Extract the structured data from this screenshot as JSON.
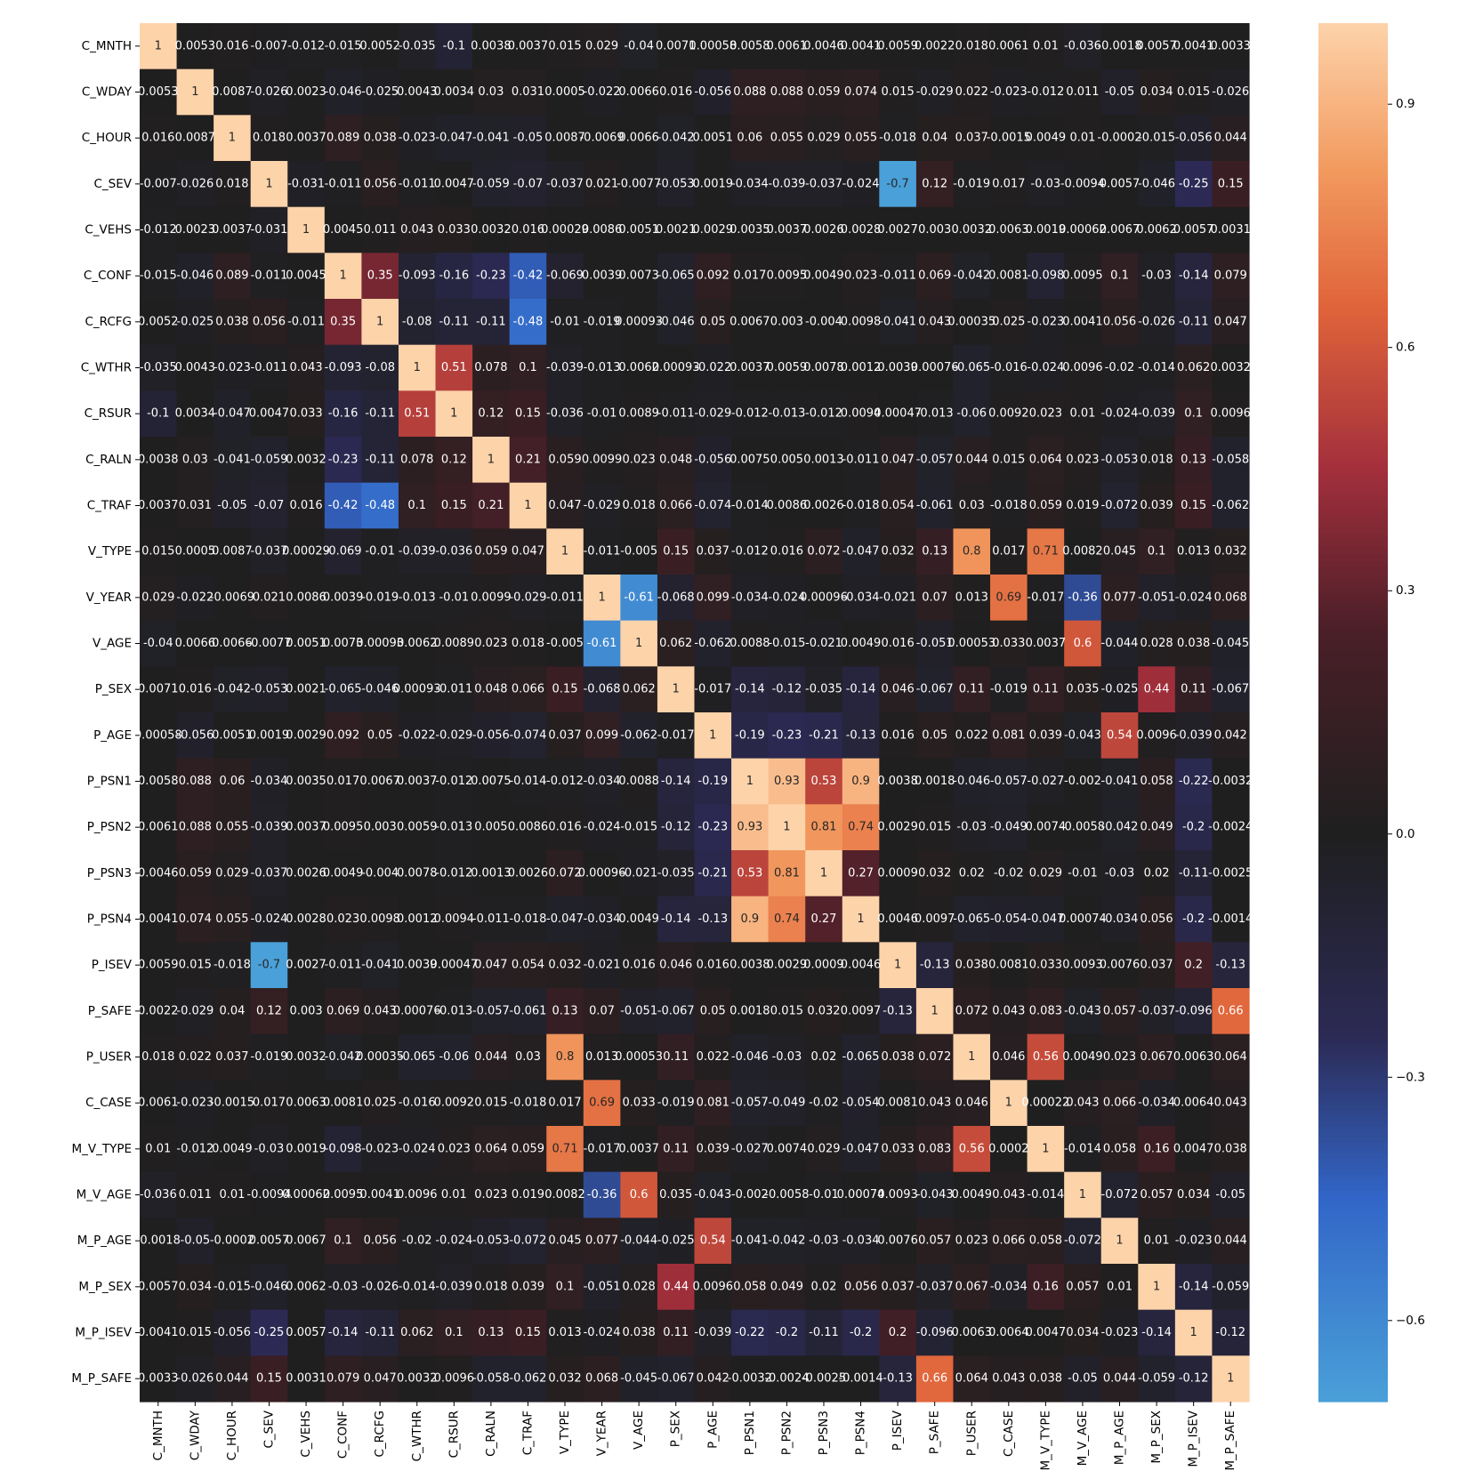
{
  "chart_data": {
    "type": "heatmap",
    "title": "",
    "xlabel": "",
    "ylabel": "",
    "labels": [
      "C_MNTH",
      "C_WDAY",
      "C_HOUR",
      "C_SEV",
      "C_VEHS",
      "C_CONF",
      "C_RCFG",
      "C_WTHR",
      "C_RSUR",
      "C_RALN",
      "C_TRAF",
      "V_TYPE",
      "V_YEAR",
      "V_AGE",
      "P_SEX",
      "P_AGE",
      "P_PSN1",
      "P_PSN2",
      "P_PSN3",
      "P_PSN4",
      "P_ISEV",
      "P_SAFE",
      "P_USER",
      "C_CASE",
      "M_V_TYPE",
      "M_V_AGE",
      "M_P_AGE",
      "M_P_SEX",
      "M_P_ISEV",
      "M_P_SAFE"
    ],
    "value_labels": [
      [
        "1",
        "0.0053",
        "0.016",
        "-0.007",
        "-0.012",
        "-0.015",
        "0.0052",
        "-0.035",
        "-0.1",
        "0.0038",
        "0.0037",
        "0.015",
        "0.029",
        "-0.04",
        "0.0071",
        "0.00058",
        "0.0058",
        "0.0061",
        "0.0046",
        "0.0041",
        "0.0059",
        "0.0022",
        "0.018",
        "0.0061",
        "0.01",
        "-0.036",
        "-0.0018",
        "0.0057",
        "0.0041",
        "0.0033"
      ],
      [
        "0.0053",
        "1",
        "0.0087",
        "-0.026",
        "0.0023",
        "-0.046",
        "-0.025",
        "0.0043",
        "0.0034",
        "0.03",
        "0.031",
        "0.0005",
        "-0.022",
        "0.0066",
        "0.016",
        "-0.056",
        "0.088",
        "0.088",
        "0.059",
        "0.074",
        "0.015",
        "-0.029",
        "0.022",
        "-0.023",
        "-0.012",
        "0.011",
        "-0.05",
        "0.034",
        "0.015",
        "-0.026"
      ],
      [
        "0.016",
        "0.0087",
        "1",
        "0.018",
        "0.0037",
        "0.089",
        "0.038",
        "-0.023",
        "-0.047",
        "-0.041",
        "-0.05",
        "0.0087",
        "-0.0069",
        "0.0066",
        "-0.042",
        "0.0051",
        "0.06",
        "0.055",
        "0.029",
        "0.055",
        "-0.018",
        "0.04",
        "0.037",
        "-0.0015",
        "0.0049",
        "0.01",
        "-0.0002",
        "-0.015",
        "-0.056",
        "0.044"
      ],
      [
        "-0.007",
        "-0.026",
        "0.018",
        "1",
        "-0.031",
        "-0.011",
        "0.056",
        "-0.011",
        "0.0047",
        "-0.059",
        "-0.07",
        "-0.037",
        "0.021",
        "-0.0077",
        "-0.053",
        "0.0019",
        "-0.034",
        "-0.039",
        "-0.037",
        "-0.024",
        "-0.7",
        "0.12",
        "-0.019",
        "0.017",
        "-0.03",
        "-0.0094",
        "0.0057",
        "-0.046",
        "-0.25",
        "0.15"
      ],
      [
        "-0.012",
        "0.0023",
        "0.0037",
        "-0.031",
        "1",
        "0.0045",
        "0.011",
        "0.043",
        "0.033",
        "0.0032",
        "0.016",
        "0.00029",
        "0.0086",
        "0.0051",
        "0.0021",
        "0.0029",
        "0.0035",
        "0.0037",
        "0.0026",
        "0.0028",
        "0.0027",
        "0.003",
        "0.0032",
        "0.0063",
        "0.0019",
        "0.00062",
        "0.0067",
        "0.0062",
        "0.0057",
        "0.0031"
      ],
      [
        "-0.015",
        "-0.046",
        "0.089",
        "-0.011",
        "0.0045",
        "1",
        "0.35",
        "-0.093",
        "-0.16",
        "-0.23",
        "-0.42",
        "-0.069",
        "0.0039",
        "0.0073",
        "-0.065",
        "0.092",
        "0.017",
        "0.0095",
        "0.0049",
        "0.023",
        "-0.011",
        "0.069",
        "-0.042",
        "0.0081",
        "-0.098",
        "0.0095",
        "0.1",
        "-0.03",
        "-0.14",
        "0.079"
      ],
      [
        "0.0052",
        "-0.025",
        "0.038",
        "0.056",
        "-0.011",
        "0.35",
        "1",
        "-0.08",
        "-0.11",
        "-0.11",
        "-0.48",
        "-0.01",
        "-0.019",
        "0.00093",
        "-0.046",
        "0.05",
        "0.0067",
        "0.003",
        "-0.004",
        "0.0098",
        "-0.041",
        "0.043",
        "0.00035",
        "0.025",
        "-0.023",
        "0.0041",
        "0.056",
        "-0.026",
        "-0.11",
        "0.047"
      ],
      [
        "-0.035",
        "0.0043",
        "-0.023",
        "-0.011",
        "0.043",
        "-0.093",
        "-0.08",
        "1",
        "0.51",
        "0.078",
        "0.1",
        "-0.039",
        "-0.013",
        "0.0062",
        "0.00093",
        "-0.022",
        "0.0037",
        "0.0059",
        "0.0078",
        "0.0012",
        "0.0039",
        "0.00076",
        "-0.065",
        "-0.016",
        "-0.024",
        "0.0096",
        "-0.02",
        "-0.014",
        "0.062",
        "0.0032"
      ],
      [
        "-0.1",
        "0.0034",
        "-0.047",
        "0.0047",
        "0.033",
        "-0.16",
        "-0.11",
        "0.51",
        "1",
        "0.12",
        "0.15",
        "-0.036",
        "-0.01",
        "0.0089",
        "-0.011",
        "-0.029",
        "-0.012",
        "-0.013",
        "-0.012",
        "0.0094",
        "0.00047",
        "-0.013",
        "-0.06",
        "0.0092",
        "0.023",
        "0.01",
        "-0.024",
        "-0.039",
        "0.1",
        "0.0096"
      ],
      [
        "0.0038",
        "0.03",
        "-0.041",
        "-0.059",
        "0.0032",
        "-0.23",
        "-0.11",
        "0.078",
        "0.12",
        "1",
        "0.21",
        "0.059",
        "0.0099",
        "0.023",
        "0.048",
        "-0.056",
        "0.0075",
        "0.005",
        "0.0013",
        "-0.011",
        "0.047",
        "-0.057",
        "0.044",
        "0.015",
        "0.064",
        "0.023",
        "-0.053",
        "0.018",
        "0.13",
        "-0.058"
      ],
      [
        "0.0037",
        "0.031",
        "-0.05",
        "-0.07",
        "0.016",
        "-0.42",
        "-0.48",
        "0.1",
        "0.15",
        "0.21",
        "1",
        "0.047",
        "-0.029",
        "0.018",
        "0.066",
        "-0.074",
        "-0.014",
        "0.0086",
        "0.0026",
        "-0.018",
        "0.054",
        "-0.061",
        "0.03",
        "-0.018",
        "0.059",
        "0.019",
        "-0.072",
        "0.039",
        "0.15",
        "-0.062"
      ],
      [
        "0.015",
        "0.0005",
        "0.0087",
        "-0.037",
        "0.00029",
        "-0.069",
        "-0.01",
        "-0.039",
        "-0.036",
        "0.059",
        "0.047",
        "1",
        "-0.011",
        "-0.005",
        "0.15",
        "0.037",
        "-0.012",
        "0.016",
        "0.072",
        "-0.047",
        "0.032",
        "0.13",
        "0.8",
        "0.017",
        "0.71",
        "0.0082",
        "0.045",
        "0.1",
        "0.013",
        "0.032"
      ],
      [
        "0.029",
        "-0.022",
        "-0.0069",
        "0.021",
        "0.0086",
        "0.0039",
        "-0.019",
        "-0.013",
        "-0.01",
        "0.0099",
        "-0.029",
        "-0.011",
        "1",
        "-0.61",
        "-0.068",
        "0.099",
        "-0.034",
        "-0.024",
        "0.00096",
        "-0.034",
        "-0.021",
        "0.07",
        "0.013",
        "0.69",
        "-0.017",
        "-0.36",
        "0.077",
        "-0.051",
        "-0.024",
        "0.068"
      ],
      [
        "-0.04",
        "0.0066",
        "0.0066",
        "-0.0077",
        "0.0051",
        "0.0073",
        "0.00093",
        "0.0062",
        "0.0089",
        "0.023",
        "0.018",
        "-0.005",
        "-0.61",
        "1",
        "0.062",
        "-0.062",
        "0.0088",
        "-0.015",
        "-0.021",
        "0.0049",
        "0.016",
        "-0.051",
        "0.00053",
        "0.033",
        "0.0037",
        "0.6",
        "-0.044",
        "0.028",
        "0.038",
        "-0.045"
      ],
      [
        "0.0071",
        "0.016",
        "-0.042",
        "-0.053",
        "0.0021",
        "-0.065",
        "-0.046",
        "0.00093",
        "-0.011",
        "0.048",
        "0.066",
        "0.15",
        "-0.068",
        "0.062",
        "1",
        "-0.017",
        "-0.14",
        "-0.12",
        "-0.035",
        "-0.14",
        "0.046",
        "-0.067",
        "0.11",
        "-0.019",
        "0.11",
        "0.035",
        "-0.025",
        "0.44",
        "0.11",
        "-0.067"
      ],
      [
        "0.00058",
        "-0.056",
        "0.0051",
        "0.0019",
        "0.0029",
        "0.092",
        "0.05",
        "-0.022",
        "-0.029",
        "-0.056",
        "-0.074",
        "0.037",
        "0.099",
        "-0.062",
        "-0.017",
        "1",
        "-0.19",
        "-0.23",
        "-0.21",
        "-0.13",
        "0.016",
        "0.05",
        "0.022",
        "0.081",
        "0.039",
        "-0.043",
        "0.54",
        "0.0096",
        "-0.039",
        "0.042"
      ],
      [
        "0.0058",
        "0.088",
        "0.06",
        "-0.034",
        "0.0035",
        "0.017",
        "0.0067",
        "0.0037",
        "-0.012",
        "0.0075",
        "-0.014",
        "-0.012",
        "-0.034",
        "0.0088",
        "-0.14",
        "-0.19",
        "1",
        "0.93",
        "0.53",
        "0.9",
        "0.0038",
        "0.0018",
        "-0.046",
        "-0.057",
        "-0.027",
        "-0.002",
        "-0.041",
        "0.058",
        "-0.22",
        "-0.0032"
      ],
      [
        "0.0061",
        "0.088",
        "0.055",
        "-0.039",
        "0.0037",
        "0.0095",
        "0.003",
        "0.0059",
        "-0.013",
        "0.005",
        "0.0086",
        "0.016",
        "-0.024",
        "-0.015",
        "-0.12",
        "-0.23",
        "0.93",
        "1",
        "0.81",
        "0.74",
        "0.0029",
        "0.015",
        "-0.03",
        "-0.049",
        "0.0074",
        "-0.0058",
        "-0.042",
        "0.049",
        "-0.2",
        "-0.0024"
      ],
      [
        "0.0046",
        "0.059",
        "0.029",
        "-0.037",
        "0.0026",
        "0.0049",
        "-0.004",
        "0.0078",
        "-0.012",
        "0.0013",
        "0.0026",
        "0.072",
        "0.00096",
        "-0.021",
        "-0.035",
        "-0.21",
        "0.53",
        "0.81",
        "1",
        "0.27",
        "0.0009",
        "0.032",
        "0.02",
        "-0.02",
        "0.029",
        "-0.01",
        "-0.03",
        "0.02",
        "-0.11",
        "-0.0025"
      ],
      [
        "0.0041",
        "0.074",
        "0.055",
        "-0.024",
        "0.0028",
        "0.023",
        "0.0098",
        "0.0012",
        "0.0094",
        "-0.011",
        "-0.018",
        "-0.047",
        "-0.034",
        "0.0049",
        "-0.14",
        "-0.13",
        "0.9",
        "0.74",
        "0.27",
        "1",
        "0.0046",
        "0.0097",
        "-0.065",
        "-0.054",
        "-0.047",
        "0.00074",
        "-0.034",
        "0.056",
        "-0.2",
        "-0.0014"
      ],
      [
        "0.0059",
        "0.015",
        "-0.018",
        "-0.7",
        "0.0027",
        "-0.011",
        "-0.041",
        "0.0039",
        "0.00047",
        "0.047",
        "0.054",
        "0.032",
        "-0.021",
        "0.016",
        "0.046",
        "0.016",
        "0.0038",
        "0.0029",
        "0.0009",
        "0.0046",
        "1",
        "-0.13",
        "0.038",
        "0.0081",
        "0.033",
        "0.0093",
        "0.0076",
        "0.037",
        "0.2",
        "-0.13"
      ],
      [
        "0.0022",
        "-0.029",
        "0.04",
        "0.12",
        "0.003",
        "0.069",
        "0.043",
        "0.00076",
        "-0.013",
        "-0.057",
        "-0.061",
        "0.13",
        "0.07",
        "-0.051",
        "-0.067",
        "0.05",
        "0.0018",
        "0.015",
        "0.032",
        "0.0097",
        "-0.13",
        "1",
        "0.072",
        "0.043",
        "0.083",
        "-0.043",
        "0.057",
        "-0.037",
        "-0.096",
        "0.66"
      ],
      [
        "0.018",
        "0.022",
        "0.037",
        "-0.019",
        "0.0032",
        "-0.042",
        "0.00035",
        "-0.065",
        "-0.06",
        "0.044",
        "0.03",
        "0.8",
        "0.013",
        "0.00053",
        "0.11",
        "0.022",
        "-0.046",
        "-0.03",
        "0.02",
        "-0.065",
        "0.038",
        "0.072",
        "1",
        "0.046",
        "0.56",
        "0.0049",
        "0.023",
        "0.067",
        "0.0063",
        "0.064"
      ],
      [
        "0.0061",
        "-0.023",
        "-0.0015",
        "0.017",
        "0.0063",
        "0.0081",
        "0.025",
        "-0.016",
        "0.0092",
        "0.015",
        "-0.018",
        "0.017",
        "0.69",
        "0.033",
        "-0.019",
        "0.081",
        "-0.057",
        "-0.049",
        "-0.02",
        "-0.054",
        "0.0081",
        "0.043",
        "0.046",
        "1",
        "0.00022",
        "0.043",
        "0.066",
        "-0.034",
        "0.0064",
        "0.043"
      ],
      [
        "0.01",
        "-0.012",
        "0.0049",
        "-0.03",
        "0.0019",
        "-0.098",
        "-0.023",
        "-0.024",
        "0.023",
        "0.064",
        "0.059",
        "0.71",
        "-0.017",
        "0.0037",
        "0.11",
        "0.039",
        "-0.027",
        "0.0074",
        "0.029",
        "-0.047",
        "0.033",
        "0.083",
        "0.56",
        "0.0002",
        "1",
        "-0.014",
        "0.058",
        "0.16",
        "0.0047",
        "0.038"
      ],
      [
        "-0.036",
        "0.011",
        "0.01",
        "-0.0094",
        "0.00062",
        "0.0095",
        "0.0041",
        "0.0096",
        "0.01",
        "0.023",
        "0.019",
        "0.0082",
        "-0.36",
        "0.6",
        "0.035",
        "-0.043",
        "-0.002",
        "-0.0058",
        "-0.01",
        "0.00074",
        "0.0093",
        "-0.043",
        "0.0049",
        "0.043",
        "-0.014",
        "1",
        "-0.072",
        "0.057",
        "0.034",
        "-0.05"
      ],
      [
        "-0.0018",
        "-0.05",
        "-0.0002",
        "0.0057",
        "0.0067",
        "0.1",
        "0.056",
        "-0.02",
        "-0.024",
        "-0.053",
        "-0.072",
        "0.045",
        "0.077",
        "-0.044",
        "-0.025",
        "0.54",
        "-0.041",
        "-0.042",
        "-0.03",
        "-0.034",
        "0.0076",
        "0.057",
        "0.023",
        "0.066",
        "0.058",
        "-0.072",
        "1",
        "0.01",
        "-0.023",
        "0.044"
      ],
      [
        "0.0057",
        "0.034",
        "-0.015",
        "-0.046",
        "0.0062",
        "-0.03",
        "-0.026",
        "-0.014",
        "-0.039",
        "0.018",
        "0.039",
        "0.1",
        "-0.051",
        "0.028",
        "0.44",
        "0.0096",
        "0.058",
        "0.049",
        "0.02",
        "0.056",
        "0.037",
        "-0.037",
        "0.067",
        "-0.034",
        "0.16",
        "0.057",
        "0.01",
        "1",
        "-0.14",
        "-0.059"
      ],
      [
        "0.0041",
        "0.015",
        "-0.056",
        "-0.25",
        "0.0057",
        "-0.14",
        "-0.11",
        "0.062",
        "0.1",
        "0.13",
        "0.15",
        "0.013",
        "-0.024",
        "0.038",
        "0.11",
        "-0.039",
        "-0.22",
        "-0.2",
        "-0.11",
        "-0.2",
        "0.2",
        "-0.096",
        "0.0063",
        "0.0064",
        "0.0047",
        "0.034",
        "-0.023",
        "-0.14",
        "1",
        "-0.12"
      ],
      [
        "0.0033",
        "-0.026",
        "0.044",
        "0.15",
        "0.0031",
        "0.079",
        "0.047",
        "0.0032",
        "0.0096",
        "-0.058",
        "-0.062",
        "0.032",
        "0.068",
        "-0.045",
        "-0.067",
        "0.042",
        "-0.0032",
        "-0.0024",
        "-0.0025",
        "-0.0014",
        "-0.13",
        "0.66",
        "0.064",
        "0.043",
        "0.038",
        "-0.05",
        "0.044",
        "-0.059",
        "-0.12",
        "1"
      ]
    ],
    "colorbar": {
      "vmin": -0.7,
      "vmax": 1.0,
      "ticks": [
        0.9,
        0.6,
        0.3,
        0.0,
        -0.3,
        -0.6
      ],
      "tick_labels": [
        "0.9",
        "0.6",
        "0.3",
        "0.0",
        "−0.3",
        "−0.6"
      ]
    },
    "colormap": "icefire",
    "color_stops": [
      {
        "v": -0.7,
        "color": "#4aa0d8"
      },
      {
        "v": -0.45,
        "color": "#3266c8"
      },
      {
        "v": -0.25,
        "color": "#2c2a55"
      },
      {
        "v": 0.0,
        "color": "#1f1f1f"
      },
      {
        "v": 0.25,
        "color": "#4a1f28"
      },
      {
        "v": 0.45,
        "color": "#a32f3c"
      },
      {
        "v": 0.65,
        "color": "#e0643a"
      },
      {
        "v": 0.82,
        "color": "#f29a5f"
      },
      {
        "v": 1.0,
        "color": "#fdd3aa"
      }
    ],
    "text_color_dark": "#262626",
    "text_color_light": "#ffffff"
  }
}
